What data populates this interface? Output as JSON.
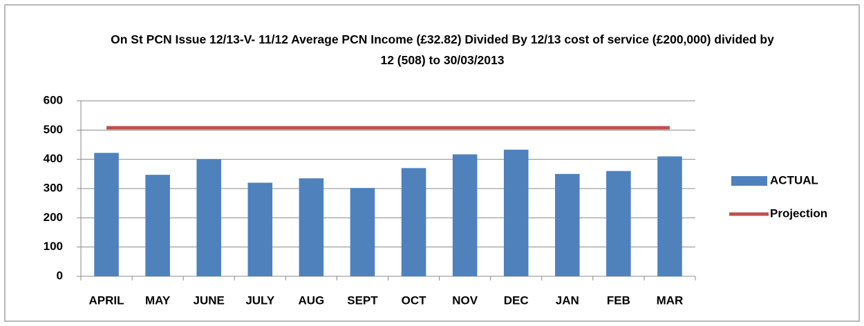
{
  "chart_data": {
    "type": "bar",
    "title": "On St PCN Issue 12/13-V- 11/12 Average PCN Income (£32.82) Divided By 12/13 cost of service (£200,000) divided by 12 (508)  to 30/03/2013",
    "categories": [
      "APRIL",
      "MAY",
      "JUNE",
      "JULY",
      "AUG",
      "SEPT",
      "OCT",
      "NOV",
      "DEC",
      "JAN",
      "FEB",
      "MAR"
    ],
    "series": [
      {
        "name": "ACTUAL",
        "type": "bar",
        "color": "#4f81bd",
        "values": [
          422,
          347,
          400,
          320,
          335,
          302,
          370,
          417,
          433,
          350,
          360,
          410
        ]
      },
      {
        "name": "Projection",
        "type": "line",
        "color": "#c0504d",
        "values": [
          508,
          508,
          508,
          508,
          508,
          508,
          508,
          508,
          508,
          508,
          508,
          508
        ]
      }
    ],
    "ylim": [
      0,
      600
    ],
    "yticks": [
      0,
      100,
      200,
      300,
      400,
      500,
      600
    ],
    "grid": true,
    "legend": "right"
  }
}
